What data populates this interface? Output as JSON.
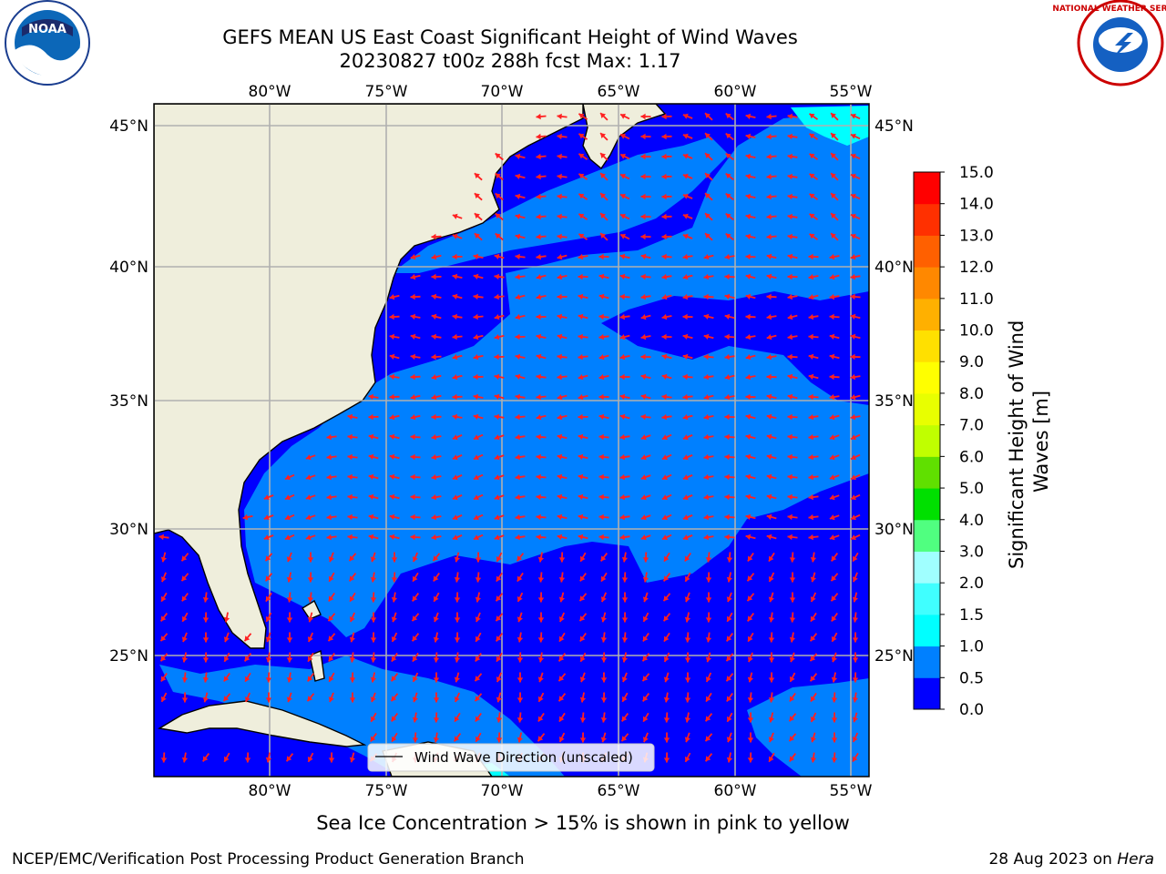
{
  "title": {
    "line1": "GEFS MEAN US East Coast Significant Height of Wind Waves",
    "line2": "20230827 t00z 288h fcst   Max: 1.17"
  },
  "axes": {
    "lon_labels": [
      "80°W",
      "75°W",
      "70°W",
      "65°W",
      "60°W",
      "55°W"
    ],
    "lat_labels": [
      "45°N",
      "40°N",
      "35°N",
      "30°N",
      "25°N"
    ],
    "lon_values": [
      -80,
      -75,
      -70,
      -65,
      -60,
      -55
    ],
    "lat_values": [
      45,
      40,
      35,
      30,
      25
    ],
    "lon_range": [
      -85,
      -54.3
    ],
    "lat_range": [
      20.5,
      45.8
    ]
  },
  "colorbar": {
    "label": "Significant Height of Wind Waves [m]",
    "ticks": [
      "0.0",
      "0.5",
      "1.0",
      "1.5",
      "2.0",
      "3.0",
      "4.0",
      "5.0",
      "6.0",
      "7.0",
      "8.0",
      "9.0",
      "10.0",
      "11.0",
      "12.0",
      "13.0",
      "14.0",
      "15.0"
    ],
    "colors": [
      "#0000ff",
      "#0080ff",
      "#00ffff",
      "#40ffff",
      "#a0ffff",
      "#50ff80",
      "#00e000",
      "#60e000",
      "#c0ff00",
      "#e8ff00",
      "#ffff00",
      "#ffe000",
      "#ffb000",
      "#ff8800",
      "#ff6000",
      "#ff3000",
      "#ff0000"
    ]
  },
  "legend": {
    "label": "Wind Wave Direction (unscaled)"
  },
  "caption": "Sea Ice Concentration > 15% is shown in pink to yellow",
  "footer": {
    "left": "NCEP/EMC/Verification Post Processing Product Generation Branch",
    "right_date": "28 Aug 2023 on ",
    "right_host": "Hera"
  },
  "logos": {
    "left": "NOAA",
    "right": "NATIONAL WEATHER SERVICE"
  },
  "map_colors": {
    "land": "#efeedc",
    "wave_0_0.5": "#0000ff",
    "wave_0.5_1.0": "#0080ff",
    "wave_1.0_1.5": "#00ffff",
    "arrow": "#ff2020"
  },
  "chart_data": {
    "type": "map",
    "field": "Significant Height of Wind Waves",
    "units": "m",
    "max": 1.17,
    "regions": [
      {
        "level": "0.0-0.5",
        "where": "open Atlantic south of 30°N, Gulf Stream interior, Florida Straits"
      },
      {
        "level": "0.5-1.0",
        "where": "broad band 28°N-40°N, Gulf of Maine approaches"
      },
      {
        "level": "1.0-1.5",
        "where": "small patches near 44°N 57°W and 21°N 72°W"
      }
    ]
  }
}
